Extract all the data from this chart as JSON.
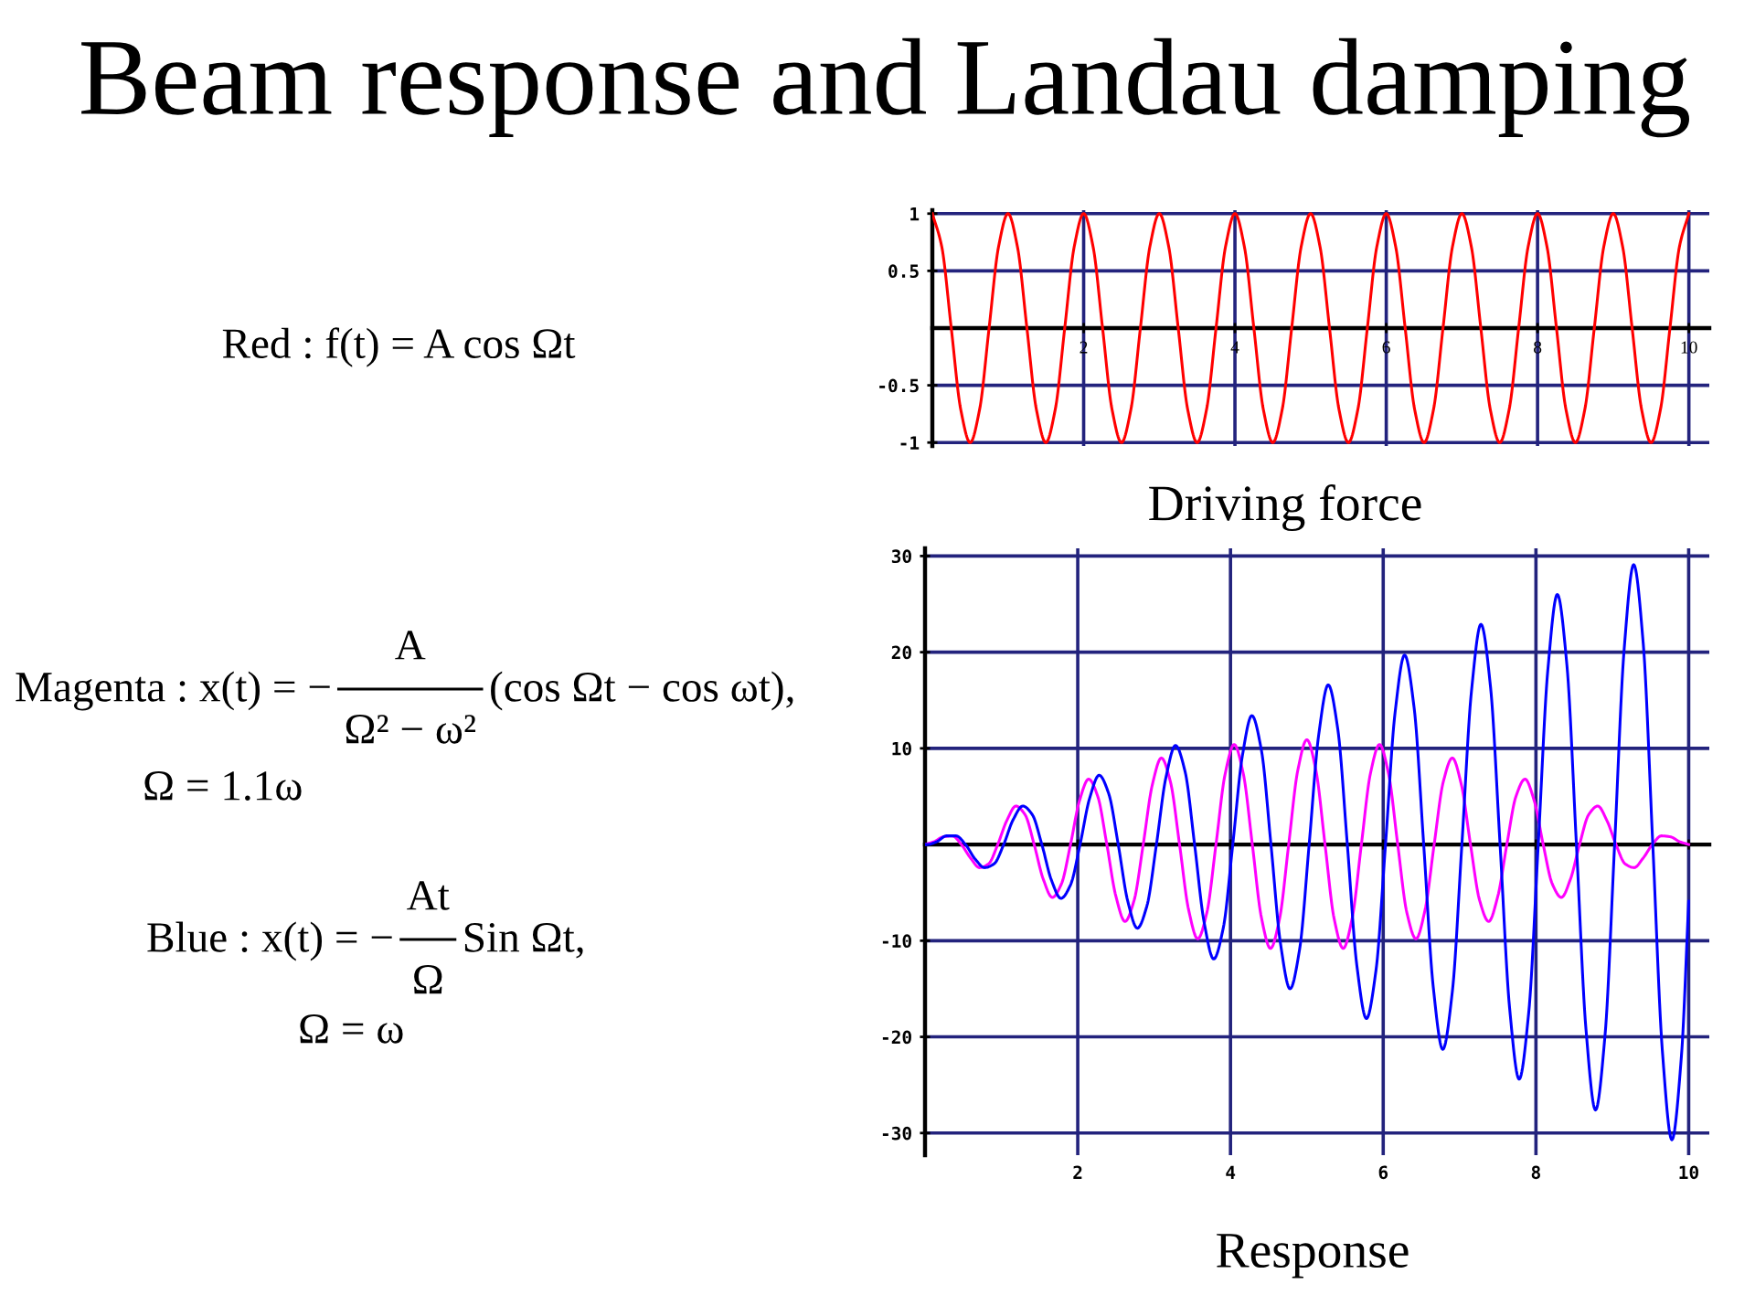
{
  "chart_data": [
    {
      "type": "line",
      "title": "Beam response and Landau damping",
      "xlabel": "Driving force",
      "annotations": [
        "Red : f(t) = A cos Ωt"
      ],
      "xlim": [
        0,
        10.27
      ],
      "ylim": [
        -1.03,
        1.03
      ],
      "xticks": [
        2,
        4,
        6,
        8,
        10
      ],
      "yticks": [
        -1,
        -0.5,
        0.5,
        1
      ],
      "grid": true,
      "series": [
        {
          "color": "#ff0000",
          "x": [
            0,
            0.125,
            0.25,
            0.375,
            0.5,
            0.625,
            0.75,
            0.875,
            1,
            1.125,
            1.25,
            1.375,
            1.5,
            1.625,
            1.75,
            1.875,
            2,
            2.125,
            2.25,
            2.375,
            2.5,
            2.625,
            2.75,
            2.875,
            3,
            3.125,
            3.25,
            3.375,
            3.5,
            3.625,
            3.75,
            3.875,
            4,
            4.125,
            4.25,
            4.375,
            4.5,
            4.625,
            4.75,
            4.875,
            5,
            5.125,
            5.25,
            5.375,
            5.5,
            5.625,
            5.75,
            5.875,
            6,
            6.125,
            6.25,
            6.375,
            6.5,
            6.625,
            6.75,
            6.875,
            7,
            7.125,
            7.25,
            7.375,
            7.5,
            7.625,
            7.75,
            7.875,
            8,
            8.125,
            8.25,
            8.375,
            8.5,
            8.625,
            8.75,
            8.875,
            9,
            9.125,
            9.25,
            9.375,
            9.5,
            9.625,
            9.75,
            9.875,
            10
          ],
          "values": [
            1,
            0.71,
            0,
            -0.71,
            -1,
            -0.71,
            0,
            0.71,
            1,
            0.71,
            0,
            -0.71,
            -1,
            -0.71,
            0,
            0.71,
            1,
            0.71,
            0,
            -0.71,
            -1,
            -0.71,
            0,
            0.71,
            1,
            0.71,
            0,
            -0.71,
            -1,
            -0.71,
            0,
            0.71,
            1,
            0.71,
            0,
            -0.71,
            -1,
            -0.71,
            0,
            0.71,
            1,
            0.71,
            0,
            -0.71,
            -1,
            -0.71,
            0,
            0.71,
            1,
            0.71,
            0,
            -0.71,
            -1,
            -0.71,
            0,
            0.71,
            1,
            0.71,
            0,
            -0.71,
            -1,
            -0.71,
            0,
            0.71,
            1,
            0.71,
            0,
            -0.71,
            -1,
            -0.71,
            0,
            0.71,
            1,
            0.71,
            0,
            -0.71,
            -1,
            -0.71,
            0,
            0.71,
            1
          ]
        }
      ]
    },
    {
      "type": "line",
      "xlabel": "Response",
      "annotations": [
        "Magenta : x(t) = −",
        "A",
        "Ω² − ω²",
        "(cos Ωt − cos ωt),",
        "Ω = 1.1ω",
        "Blue : x(t) = −",
        "At",
        "Ω",
        "Sin Ωt,",
        "Ω = ω"
      ],
      "xlim": [
        0,
        10.27
      ],
      "ylim": [
        -32.3,
        30.8
      ],
      "xticks": [
        2,
        4,
        6,
        8,
        10
      ],
      "yticks": [
        -30,
        -20,
        -10,
        10,
        20,
        30
      ],
      "grid": true,
      "series": [
        {
          "color": "#ff00ff",
          "x": [
            0,
            0.119,
            0.238,
            0.357,
            0.476,
            0.595,
            0.714,
            0.833,
            0.952,
            1.071,
            1.19,
            1.31,
            1.429,
            1.548,
            1.667,
            1.786,
            1.905,
            2.024,
            2.143,
            2.262,
            2.381,
            2.5,
            2.619,
            2.738,
            2.857,
            2.976,
            3.095,
            3.214,
            3.333,
            3.452,
            3.571,
            3.69,
            3.81,
            3.929,
            4.048,
            4.167,
            4.286,
            4.405,
            4.524,
            4.643,
            4.762,
            4.881,
            5,
            5.119,
            5.238,
            5.357,
            5.476,
            5.595,
            5.714,
            5.833,
            5.952,
            6.071,
            6.19,
            6.31,
            6.429,
            6.548,
            6.667,
            6.786,
            6.905,
            7.024,
            7.143,
            7.262,
            7.381,
            7.5,
            7.619,
            7.738,
            7.857,
            7.976,
            8.095,
            8.214,
            8.333,
            8.452,
            8.571,
            8.69,
            8.81,
            8.929,
            9.048,
            9.167,
            9.286,
            9.405,
            9.524,
            9.643,
            9.762,
            9.881,
            10
          ],
          "values": [
            0,
            0.3,
            0.8,
            0.9,
            0,
            -1.4,
            -2.4,
            -2.0,
            0,
            2.5,
            4.0,
            3.1,
            0,
            -3.6,
            -5.5,
            -4.1,
            0,
            4.6,
            6.8,
            5.0,
            0,
            -5.4,
            -8.0,
            -5.8,
            0,
            6.2,
            9.0,
            6.5,
            0,
            -6.8,
            -9.8,
            -7.1,
            0,
            7.3,
            10.4,
            7.4,
            0,
            -7.6,
            -10.8,
            -7.7,
            0,
            7.7,
            10.9,
            7.7,
            0,
            -7.7,
            -10.8,
            -7.6,
            0,
            7.4,
            10.4,
            7.3,
            0,
            -7.1,
            -9.8,
            -6.8,
            0,
            6.5,
            9.0,
            6.2,
            0,
            -5.8,
            -8.0,
            -5.4,
            0,
            5.0,
            6.8,
            4.6,
            0,
            -4.1,
            -5.5,
            -3.6,
            0,
            3.1,
            4.0,
            2.5,
            0,
            -2.0,
            -2.4,
            -1.4,
            0,
            0.9,
            0.8,
            0.3,
            0
          ]
        },
        {
          "color": "#0000ff",
          "x": [
            0,
            0.03,
            0.155,
            0.28,
            0.405,
            0.53,
            0.655,
            0.78,
            0.905,
            1.03,
            1.155,
            1.28,
            1.405,
            1.53,
            1.655,
            1.78,
            1.905,
            2.03,
            2.155,
            2.28,
            2.405,
            2.53,
            2.655,
            2.78,
            2.905,
            3.03,
            3.155,
            3.28,
            3.405,
            3.53,
            3.655,
            3.78,
            3.905,
            4.03,
            4.155,
            4.28,
            4.405,
            4.53,
            4.655,
            4.78,
            4.905,
            5.03,
            5.155,
            5.28,
            5.405,
            5.53,
            5.655,
            5.78,
            5.905,
            6.03,
            6.155,
            6.28,
            6.405,
            6.53,
            6.655,
            6.78,
            6.905,
            7.03,
            7.155,
            7.28,
            7.405,
            7.53,
            7.655,
            7.78,
            7.905,
            8.03,
            8.155,
            8.28,
            8.405,
            8.53,
            8.655,
            8.78,
            8.905,
            9.03,
            9.155,
            9.28,
            9.405,
            9.53,
            9.655,
            9.78,
            9.905,
            10
          ],
          "values": [
            0,
            0,
            0.3,
            0.9,
            0.9,
            0,
            -1.5,
            -2.4,
            -2.0,
            0,
            2.6,
            4.0,
            3.1,
            0,
            -3.7,
            -5.6,
            -4.2,
            0,
            4.8,
            7.2,
            5.3,
            0,
            -5.9,
            -8.7,
            -6.4,
            0,
            7.0,
            10.3,
            7.6,
            0,
            -8.1,
            -11.9,
            -8.7,
            0,
            9.2,
            13.4,
            9.8,
            0,
            -10.3,
            -15.0,
            -10.9,
            0,
            11.4,
            16.6,
            12.0,
            0,
            -12.6,
            -18.1,
            -13.1,
            0,
            13.7,
            19.7,
            14.2,
            0,
            -14.8,
            -21.3,
            -15.3,
            0,
            15.9,
            22.9,
            16.4,
            0,
            -17.0,
            -24.4,
            -17.5,
            0,
            18.1,
            26.0,
            18.7,
            0,
            -19.2,
            -27.6,
            -19.8,
            0,
            20.3,
            29.1,
            20.9,
            0,
            -21.4,
            -30.7,
            -22.0,
            -5.9
          ]
        }
      ]
    }
  ]
}
